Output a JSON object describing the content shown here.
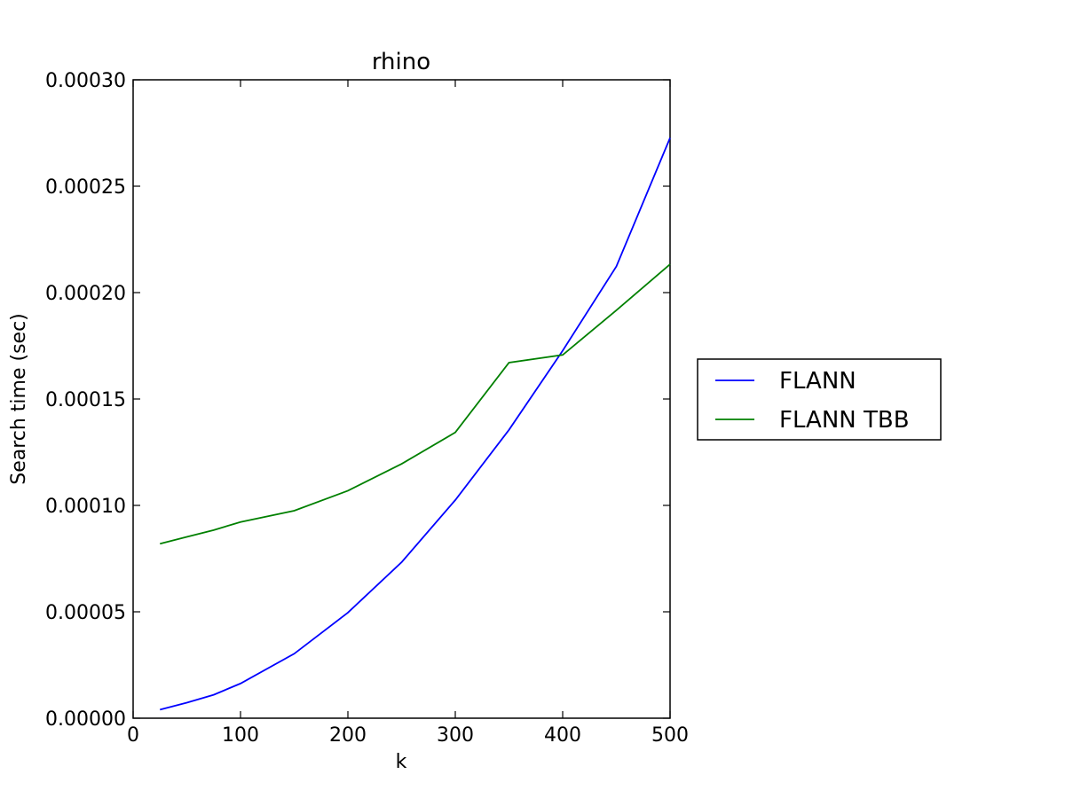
{
  "chart_data": {
    "type": "line",
    "title": "rhino",
    "xlabel": "k",
    "ylabel": "Search time (sec)",
    "xlim": [
      0,
      500
    ],
    "ylim": [
      0,
      0.0003
    ],
    "xticks": [
      0,
      100,
      200,
      300,
      400,
      500
    ],
    "xtick_labels": [
      "0",
      "100",
      "200",
      "300",
      "400",
      "500"
    ],
    "yticks": [
      0,
      5e-05,
      0.0001,
      0.00015,
      0.0002,
      0.00025,
      0.0003
    ],
    "ytick_labels": [
      "0.00000",
      "0.00005",
      "0.00010",
      "0.00015",
      "0.00020",
      "0.00025",
      "0.00030"
    ],
    "grid": false,
    "legend_position": "outside-right",
    "x": [
      25,
      50,
      75,
      100,
      150,
      200,
      250,
      300,
      350,
      400,
      450,
      500
    ],
    "series": [
      {
        "name": "FLANN",
        "color": "#0000ff",
        "values": [
          4e-06,
          7.3e-06,
          1.1e-05,
          1.63e-05,
          3.03e-05,
          4.96e-05,
          7.33e-05,
          0.0001025,
          0.0001355,
          0.0001727,
          0.0002123,
          0.0002727
        ]
      },
      {
        "name": "FLANN TBB",
        "color": "#008000",
        "values": [
          8.2e-05,
          8.52e-05,
          8.84e-05,
          9.22e-05,
          9.75e-05,
          0.0001069,
          0.0001195,
          0.0001343,
          0.0001671,
          0.0001707,
          0.0001917,
          0.0002133
        ]
      }
    ]
  }
}
